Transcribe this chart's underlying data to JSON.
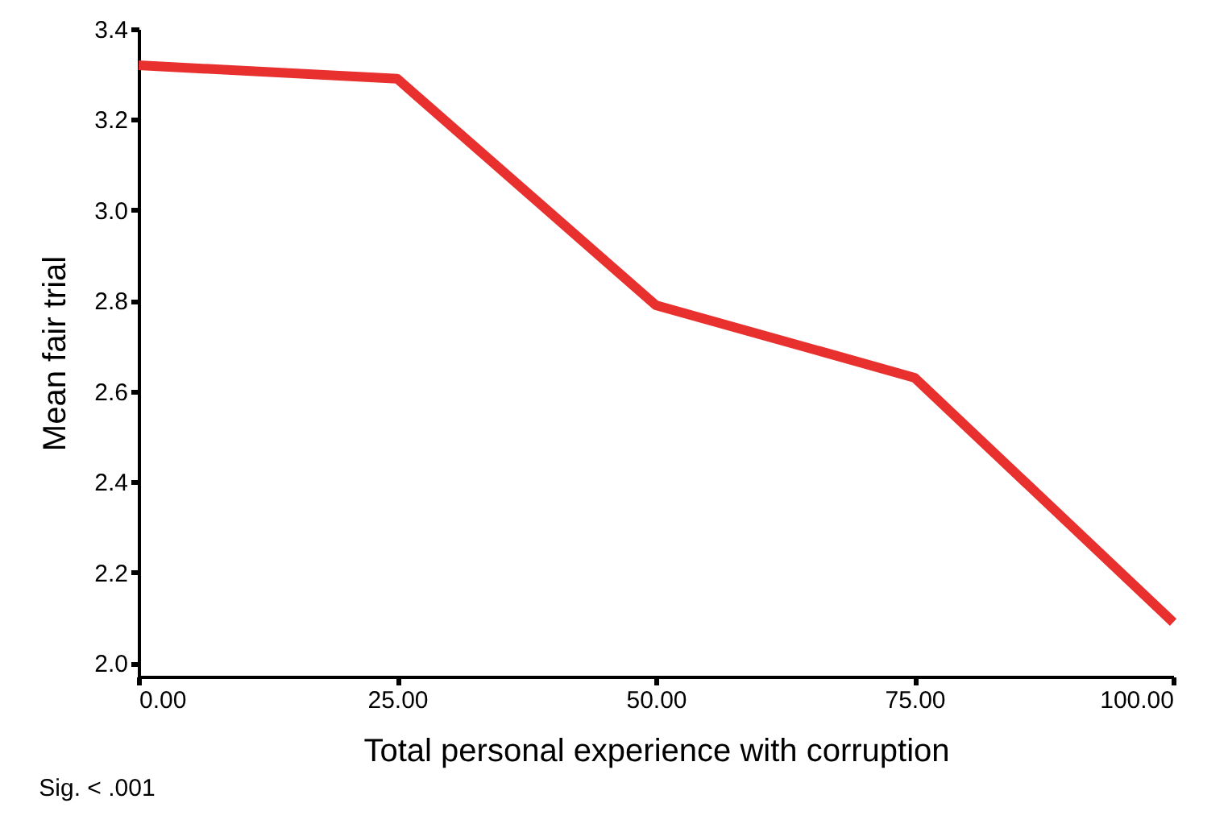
{
  "chart_data": {
    "type": "line",
    "xlabel": "Total personal experience with corruption",
    "ylabel": "Mean fair trial",
    "annotations": [
      "Sig. < .001"
    ],
    "x": [
      0,
      25,
      50,
      75,
      100
    ],
    "series": [
      {
        "color": "#e8312f",
        "values": [
          3.32,
          3.29,
          2.79,
          2.63,
          2.09
        ]
      }
    ],
    "xlim": [
      0,
      100
    ],
    "xticks": [
      {
        "value": 0,
        "label": "0.00"
      },
      {
        "value": 25,
        "label": "25.00"
      },
      {
        "value": 50,
        "label": "50.00"
      },
      {
        "value": 75,
        "label": "75.00"
      },
      {
        "value": 100,
        "label": "100.00"
      }
    ],
    "ylim": [
      1.97,
      3.4
    ],
    "yticks": [
      {
        "value": 2,
        "label": "2.0"
      },
      {
        "value": 2.2,
        "label": "2.2"
      },
      {
        "value": 2.4,
        "label": "2.4"
      },
      {
        "value": 2.6,
        "label": "2.6"
      },
      {
        "value": 2.8,
        "label": "2.8"
      },
      {
        "value": 3,
        "label": "3.0"
      },
      {
        "value": 3.2,
        "label": "3.2"
      },
      {
        "value": 3.4,
        "label": "3.4"
      }
    ],
    "grid": false,
    "marker": "none",
    "line_style": "solid"
  }
}
